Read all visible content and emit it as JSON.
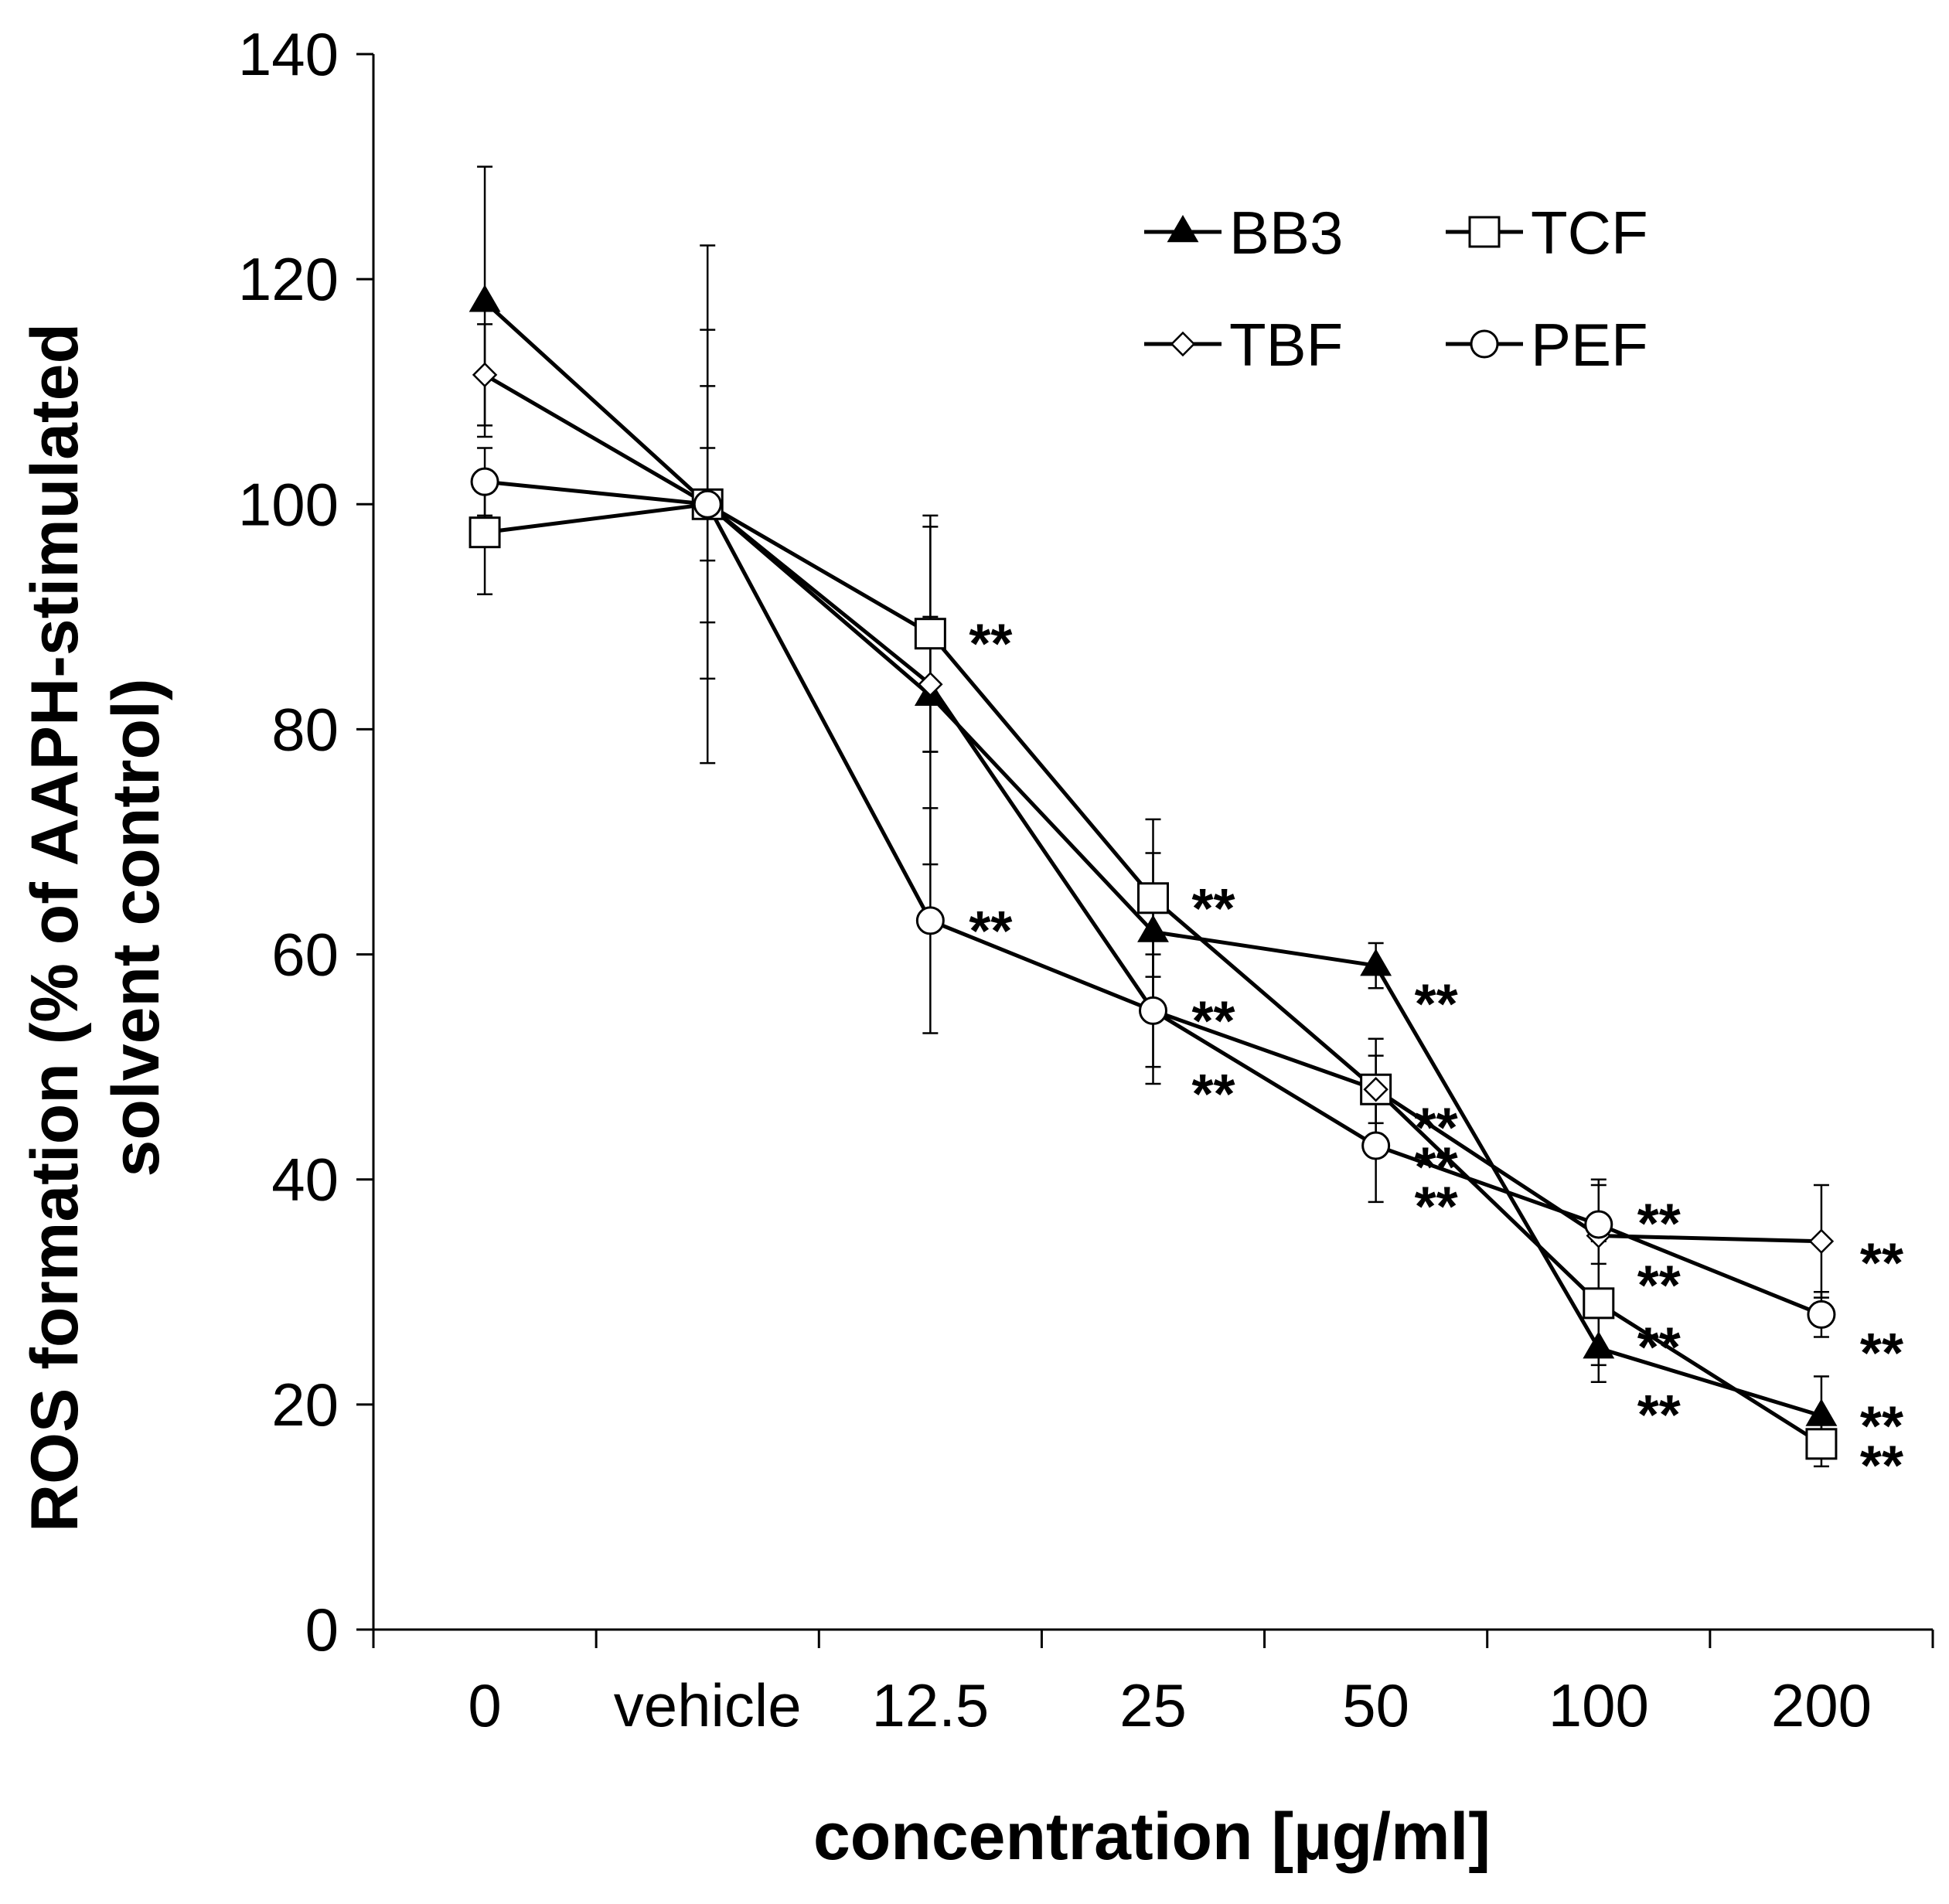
{
  "chart_data": {
    "type": "line",
    "title": "",
    "xlabel": "concentration [µg/ml]",
    "ylabel_lines": [
      "ROS formation (% of AAPH-stimulated",
      "solvent control)"
    ],
    "categories": [
      "0",
      "vehicle",
      "12.5",
      "25",
      "50",
      "100",
      "200"
    ],
    "ylim": [
      0,
      140
    ],
    "yticks": [
      0,
      20,
      40,
      60,
      80,
      100,
      120,
      140
    ],
    "grid": false,
    "legend_position": "top-right",
    "series": [
      {
        "name": "BB3",
        "marker": "filled-triangle",
        "values": [
          118,
          100,
          83,
          62,
          59,
          25,
          19
        ],
        "errors": [
          12,
          23,
          15,
          7,
          2,
          3,
          3.5
        ]
      },
      {
        "name": "TCF",
        "marker": "open-square",
        "values": [
          97.5,
          100,
          88.5,
          65,
          48,
          29,
          16.5
        ],
        "errors": [
          5.5,
          15.5,
          10.5,
          7,
          4.5,
          5.5,
          2
        ]
      },
      {
        "name": "TBF",
        "marker": "open-diamond",
        "values": [
          111.5,
          100,
          84,
          55,
          48,
          35,
          34.5
        ],
        "errors": [
          4.5,
          10.5,
          6,
          5,
          3,
          5,
          5
        ]
      },
      {
        "name": "PEF",
        "marker": "open-circle",
        "values": [
          102,
          100,
          63,
          55,
          43,
          36,
          28
        ],
        "errors": [
          3,
          5,
          10,
          6.5,
          5,
          3.5,
          2
        ]
      }
    ],
    "annotations": [
      {
        "text": "**",
        "category": "12.5",
        "y": 88.5
      },
      {
        "text": "**",
        "category": "12.5",
        "y": 63
      },
      {
        "text": "**",
        "category": "25",
        "y": 65
      },
      {
        "text": "**",
        "category": "25",
        "y": 55
      },
      {
        "text": "**",
        "category": "25",
        "y": 48.5
      },
      {
        "text": "**",
        "category": "50",
        "y": 56.5
      },
      {
        "text": "**",
        "category": "50",
        "y": 45.5
      },
      {
        "text": "**",
        "category": "50",
        "y": 42
      },
      {
        "text": "**",
        "category": "50",
        "y": 38.5
      },
      {
        "text": "**",
        "category": "100",
        "y": 37
      },
      {
        "text": "**",
        "category": "100",
        "y": 31.5
      },
      {
        "text": "**",
        "category": "100",
        "y": 26
      },
      {
        "text": "**",
        "category": "100",
        "y": 20
      },
      {
        "text": "**",
        "category": "200",
        "y": 33.5
      },
      {
        "text": "**",
        "category": "200",
        "y": 25.5
      },
      {
        "text": "**",
        "category": "200",
        "y": 19
      },
      {
        "text": "**",
        "category": "200",
        "y": 15.5
      }
    ]
  }
}
